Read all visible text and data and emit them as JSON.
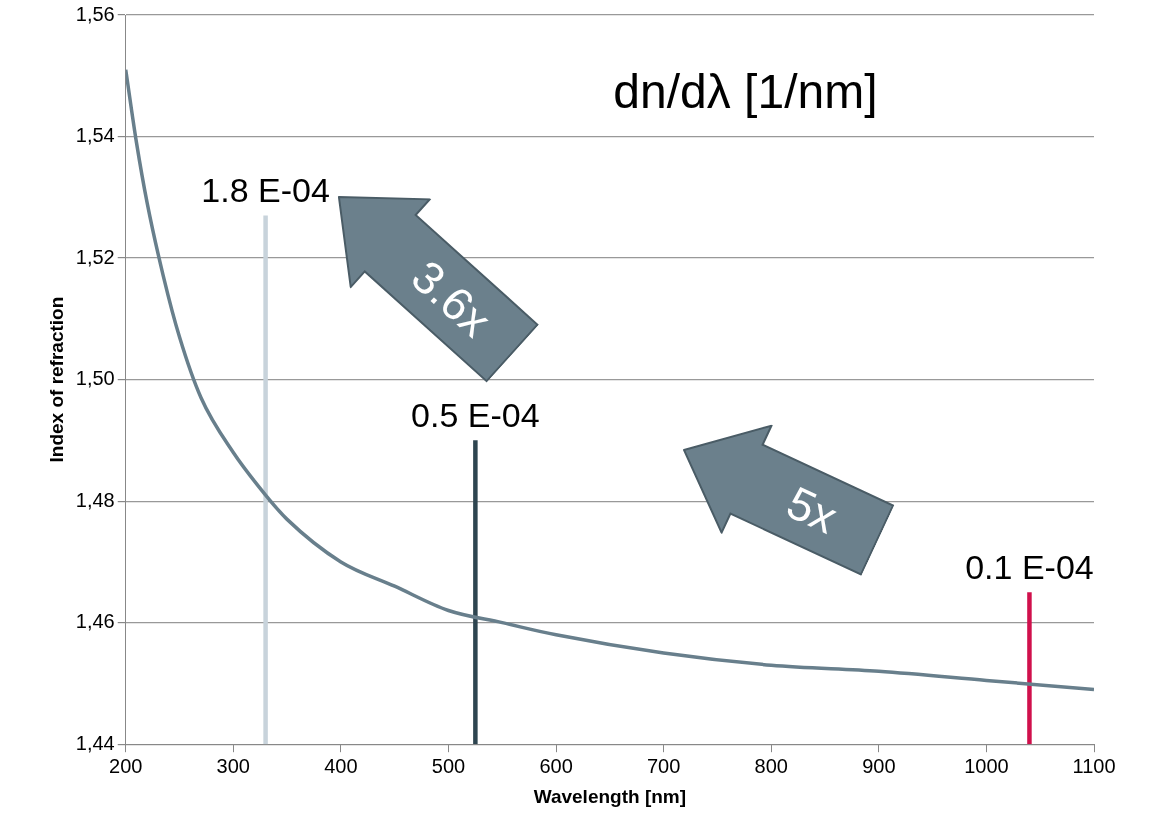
{
  "chart_data": {
    "type": "line",
    "title": "dn/dλ [1/nm]",
    "xlabel": "Wavelength [nm]",
    "ylabel": "Index of refraction",
    "xlim": [
      200,
      1100
    ],
    "xticks": [
      200,
      300,
      400,
      500,
      600,
      700,
      800,
      900,
      1000,
      1100
    ],
    "ylim": [
      1.44,
      1.56
    ],
    "yticks": [
      {
        "value": 1.44,
        "label": "1,44"
      },
      {
        "value": 1.46,
        "label": "1,46"
      },
      {
        "value": 1.48,
        "label": "1,48"
      },
      {
        "value": 1.5,
        "label": "1,50"
      },
      {
        "value": 1.52,
        "label": "1,52"
      },
      {
        "value": 1.54,
        "label": "1,54"
      },
      {
        "value": 1.56,
        "label": "1,56"
      }
    ],
    "grid": "y",
    "legend": false,
    "marker": "none",
    "line_style": "solid",
    "series": [
      {
        "type": "line",
        "color": "#687f8c",
        "x": [
          200,
          210,
          220,
          235,
          250,
          270,
          300,
          330,
          350,
          400,
          450,
          500,
          550,
          600,
          700,
          800,
          900,
          1000,
          1100
        ],
        "values": [
          1.551,
          1.539,
          1.529,
          1.517,
          1.507,
          1.497,
          1.488,
          1.481,
          1.477,
          1.47,
          1.466,
          1.462,
          1.46,
          1.458,
          1.455,
          1.453,
          1.452,
          1.4505,
          1.449
        ]
      },
      {
        "type": "line",
        "color": "#c8d3db",
        "x": [
          330,
          330
        ],
        "values": [
          1.44,
          1.527
        ]
      },
      {
        "type": "line",
        "color": "#2e4550",
        "x": [
          525,
          525
        ],
        "values": [
          1.44,
          1.49
        ]
      },
      {
        "type": "line",
        "color": "#d0104c",
        "x": [
          1040,
          1040
        ],
        "values": [
          1.44,
          1.465
        ]
      }
    ],
    "annotations": [
      {
        "text": "1.8 E-04",
        "x": 330,
        "y": 1.527
      },
      {
        "text": "0.5 E-04",
        "x": 525,
        "y": 1.49
      },
      {
        "text": "0.1 E-04",
        "x": 1040,
        "y": 1.465
      },
      "3.6x",
      "5x"
    ]
  }
}
